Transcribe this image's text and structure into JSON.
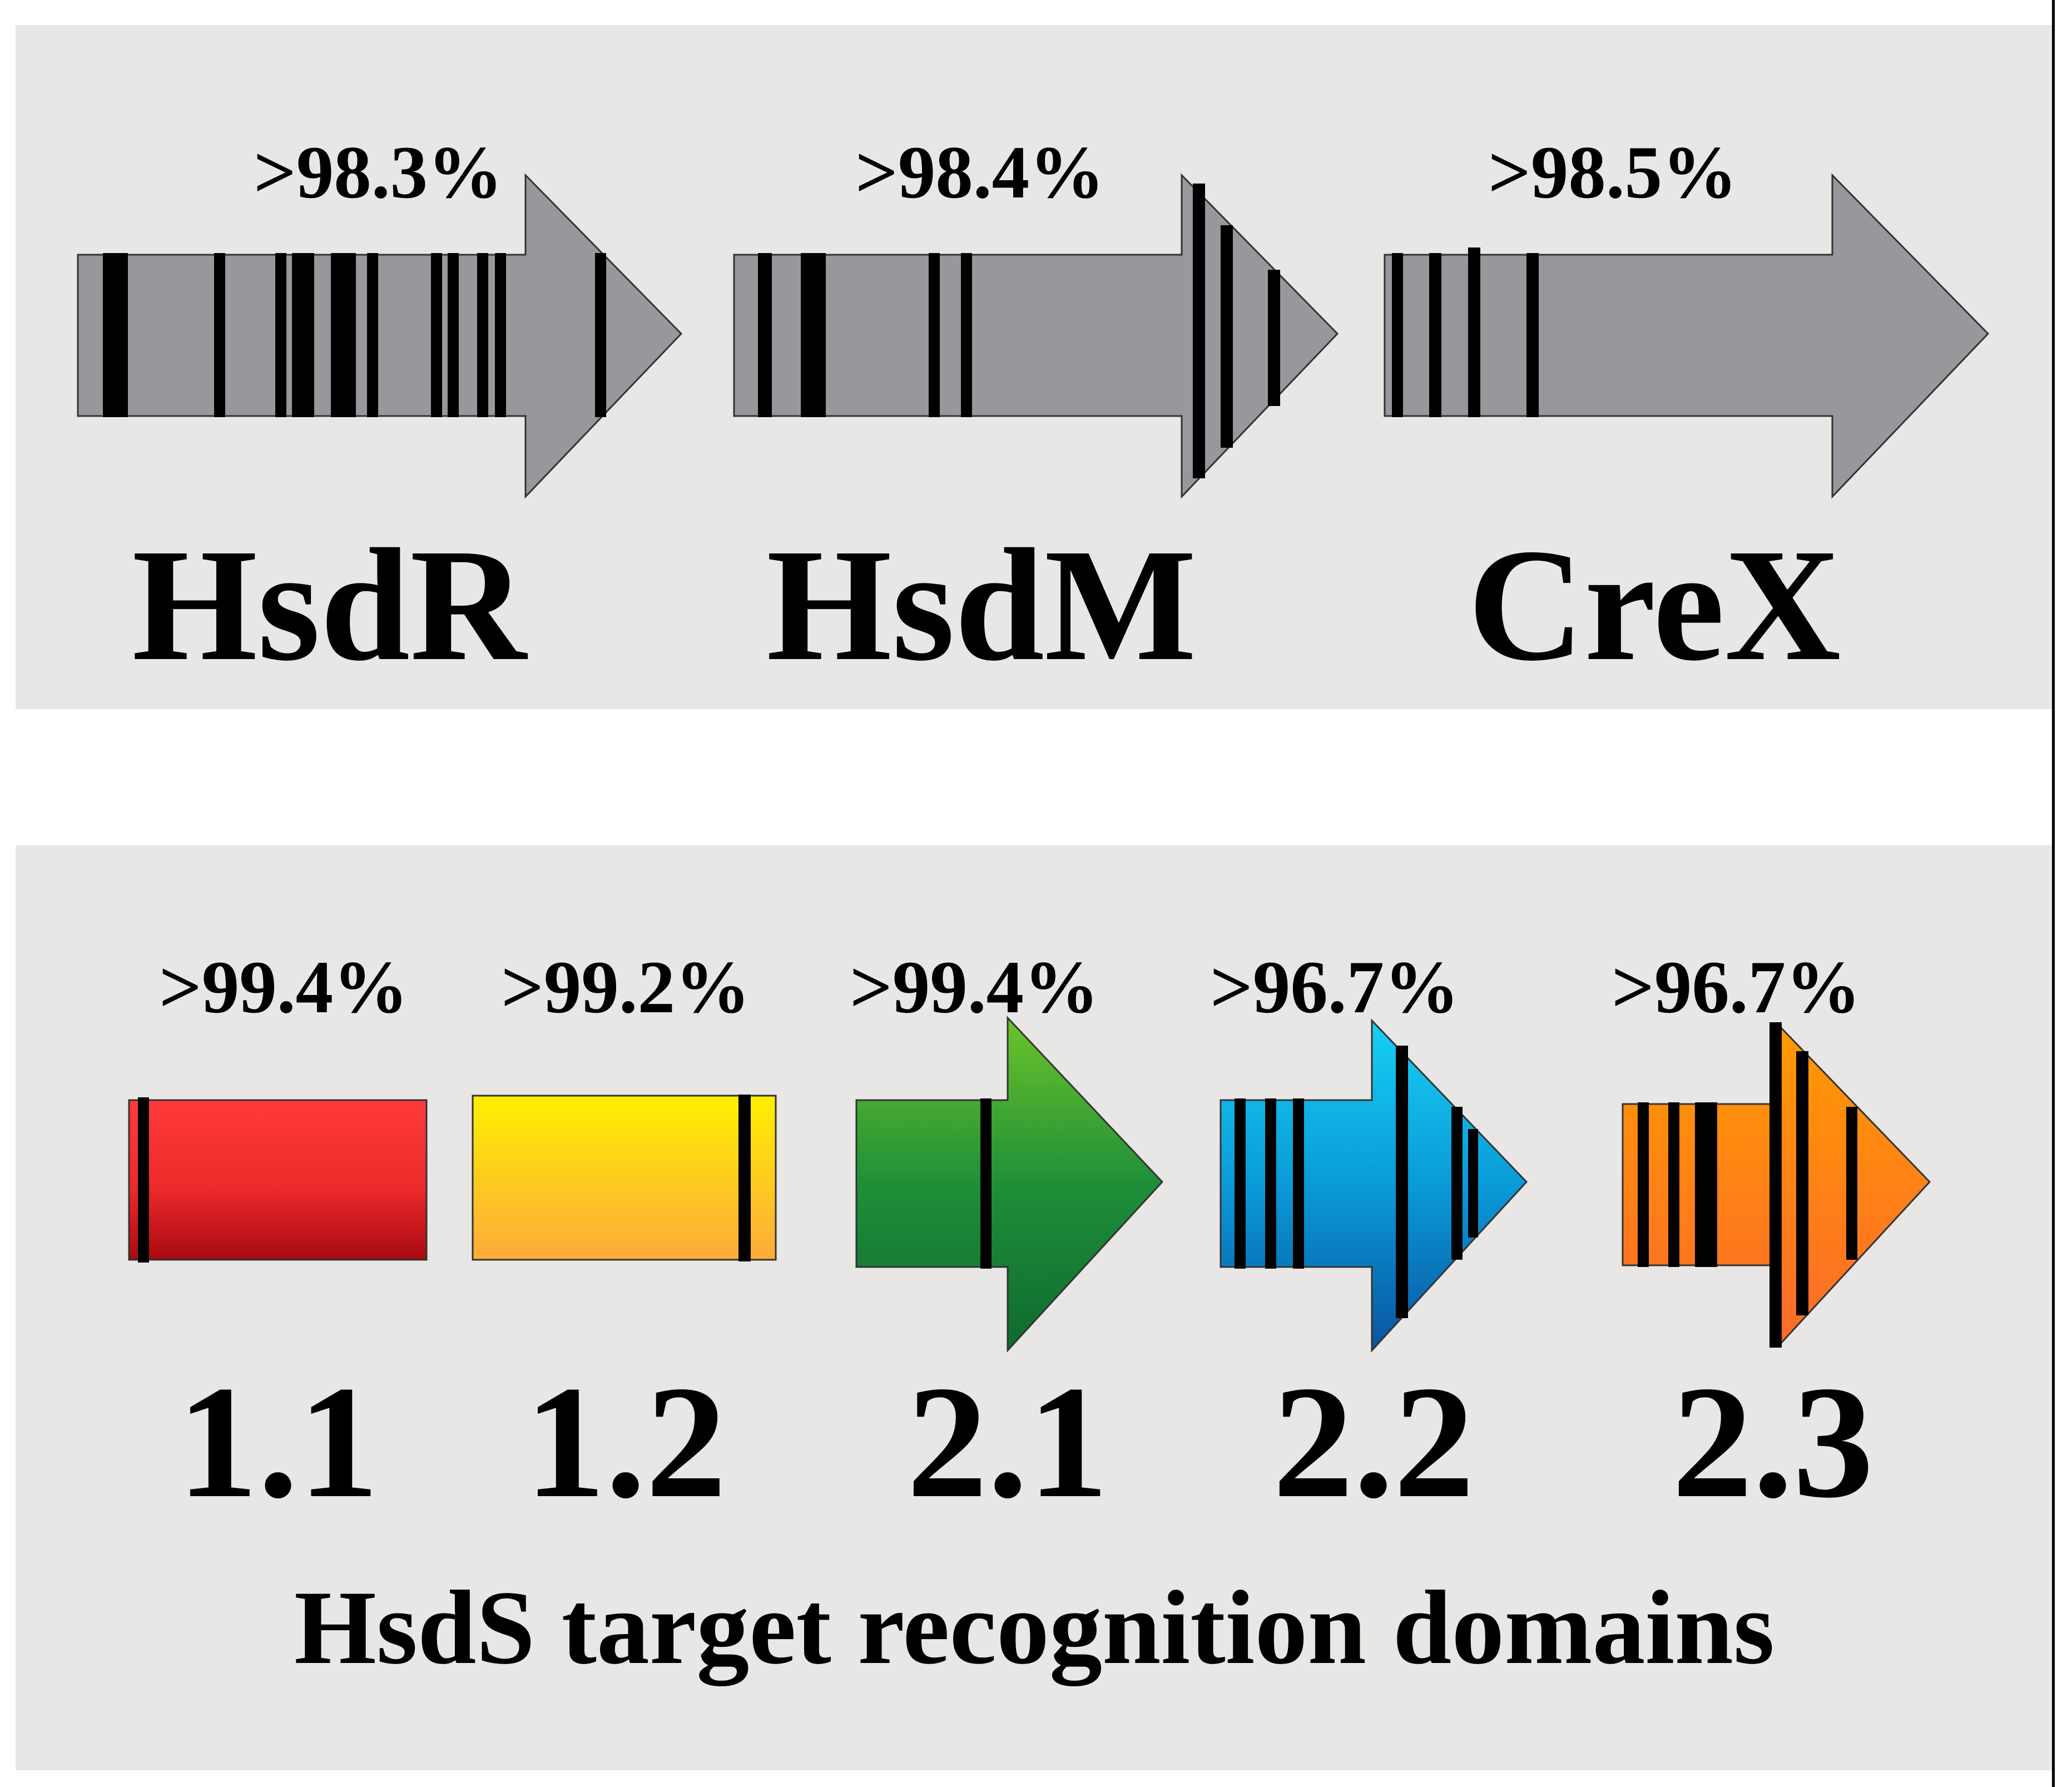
{
  "colors": {
    "panel_bg": "#e8e7e5",
    "gene_gray": "#97979c",
    "mark": "#000000",
    "red_top": "#ff3a3a",
    "red_bottom": "#a80a12",
    "yellow_top": "#ffef00",
    "yellow_bottom": "#fdaa3c",
    "green_top": "#6cc42a",
    "green_bottom": "#0f6a30",
    "blue_top": "#17d0f3",
    "blue_bottom": "#0a55a0",
    "orange_top": "#ff9a00",
    "orange_bottom": "#fd6a2c"
  },
  "top_panel": {
    "genes": [
      {
        "name": "HsdR",
        "identity": ">98.3%"
      },
      {
        "name": "HsdM",
        "identity": ">98.4%"
      },
      {
        "name": "CreX",
        "identity": ">98.5%"
      }
    ]
  },
  "bottom_panel": {
    "domains": [
      {
        "name": "1.1",
        "identity": ">99.4%"
      },
      {
        "name": "1.2",
        "identity": ">99.2%"
      },
      {
        "name": "2.1",
        "identity": ">99.4%"
      },
      {
        "name": "2.2",
        "identity": ">96.7%"
      },
      {
        "name": "2.3",
        "identity": ">96.7%"
      }
    ],
    "caption": "HsdS target recognition domains"
  }
}
